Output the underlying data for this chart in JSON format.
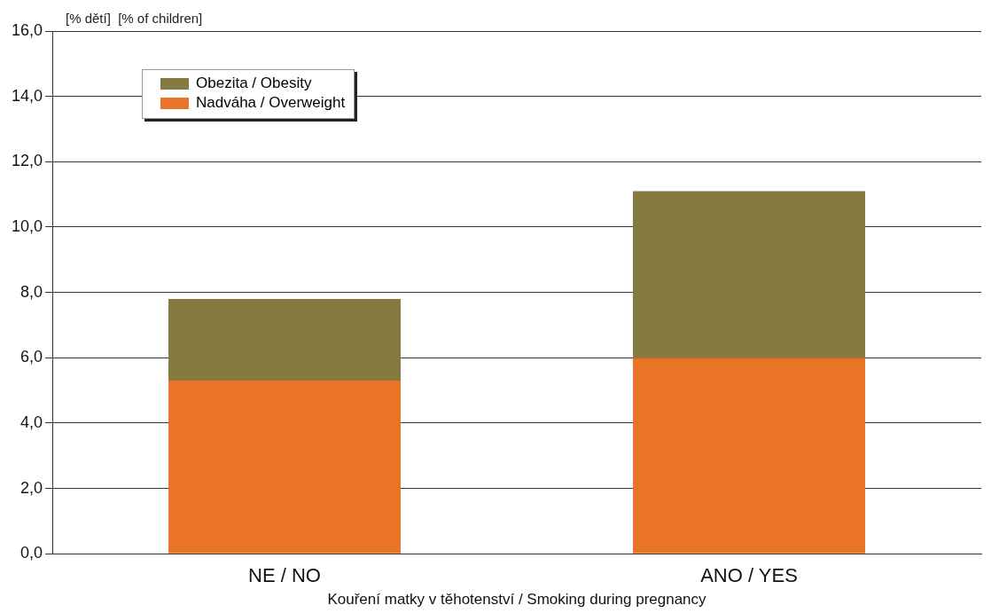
{
  "chart_data": {
    "type": "bar",
    "stacked": true,
    "ylabel": "[% dětí]  [% of children]",
    "xlabel": "Kouření matky v těhotenství / Smoking during pregnancy",
    "categories": [
      "NE / NO",
      "ANO / YES"
    ],
    "series": [
      {
        "name": "Nadváha / Overweight",
        "color": "#e97428",
        "values": [
          5.3,
          6.0
        ]
      },
      {
        "name": "Obezita / Obesity",
        "color": "#857a3f",
        "values": [
          2.5,
          5.1
        ]
      }
    ],
    "ylim": [
      0,
      16
    ],
    "yticks": [
      {
        "value": 0,
        "label": "0,0"
      },
      {
        "value": 2,
        "label": "2,0"
      },
      {
        "value": 4,
        "label": "4,0"
      },
      {
        "value": 6,
        "label": "6,0"
      },
      {
        "value": 8,
        "label": "8,0"
      },
      {
        "value": 10,
        "label": "10,0"
      },
      {
        "value": 12,
        "label": "12,0"
      },
      {
        "value": 14,
        "label": "14,0"
      },
      {
        "value": 16,
        "label": "16,0"
      }
    ],
    "grid": "y",
    "legend": "top left"
  }
}
